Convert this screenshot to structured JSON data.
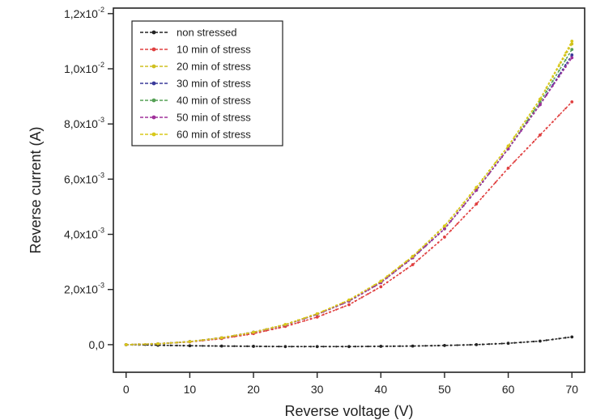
{
  "chart_data": {
    "type": "line",
    "xlabel": "Reverse voltage (V)",
    "ylabel": "Reverse current (A)",
    "xlim": [
      -2,
      72
    ],
    "ylim": [
      -0.001,
      0.0122
    ],
    "x_ticks": [
      0,
      10,
      20,
      30,
      40,
      50,
      60,
      70
    ],
    "x_tick_labels": [
      "0",
      "10",
      "20",
      "30",
      "40",
      "50",
      "60",
      "70"
    ],
    "y_ticks": [
      0,
      0.002,
      0.004,
      0.006,
      0.008,
      0.01,
      0.012
    ],
    "y_tick_labels": [
      {
        "mantissa": "0,0",
        "exp": ""
      },
      {
        "mantissa": "2,0x10",
        "exp": "-3"
      },
      {
        "mantissa": "4,0x10",
        "exp": "-3"
      },
      {
        "mantissa": "6,0x10",
        "exp": "-3"
      },
      {
        "mantissa": "8,0x10",
        "exp": "-3"
      },
      {
        "mantissa": "1,0x10",
        "exp": "-2"
      },
      {
        "mantissa": "1,2x10",
        "exp": "-2"
      }
    ],
    "grid": false,
    "legend_position": "top-left",
    "x": [
      0,
      5,
      10,
      15,
      20,
      25,
      30,
      35,
      40,
      45,
      50,
      55,
      60,
      65,
      70
    ],
    "series": [
      {
        "name": "non stressed",
        "color": "#222222",
        "values": [
          0,
          -2e-05,
          -4e-05,
          -5e-05,
          -6e-05,
          -7e-05,
          -7e-05,
          -7e-05,
          -6e-05,
          -5e-05,
          -3e-05,
          0,
          5e-05,
          0.00013,
          0.00028
        ]
      },
      {
        "name": "10 min of stress",
        "color": "#e04040",
        "values": [
          0,
          3e-05,
          0.0001,
          0.00022,
          0.0004,
          0.00066,
          0.001,
          0.00145,
          0.0021,
          0.0029,
          0.0039,
          0.0051,
          0.0064,
          0.0076,
          0.0088
        ]
      },
      {
        "name": "20 min of stress",
        "color": "#cfc020",
        "values": [
          0,
          3e-05,
          0.00011,
          0.00025,
          0.00045,
          0.00073,
          0.00112,
          0.0016,
          0.0023,
          0.0032,
          0.0043,
          0.0057,
          0.0072,
          0.0089,
          0.0109
        ]
      },
      {
        "name": "30 min of stress",
        "color": "#3a3a9a",
        "values": [
          0,
          3e-05,
          0.00011,
          0.00025,
          0.00045,
          0.00072,
          0.0011,
          0.00158,
          0.00225,
          0.00315,
          0.0042,
          0.0056,
          0.0071,
          0.0087,
          0.0105
        ]
      },
      {
        "name": "40 min of stress",
        "color": "#55a055",
        "values": [
          0,
          3e-05,
          0.00011,
          0.00025,
          0.00045,
          0.00072,
          0.0011,
          0.00158,
          0.00225,
          0.00315,
          0.0042,
          0.0056,
          0.0071,
          0.0088,
          0.0107
        ]
      },
      {
        "name": "50 min of stress",
        "color": "#a0309a",
        "values": [
          0,
          3e-05,
          0.00011,
          0.00025,
          0.00045,
          0.00072,
          0.0011,
          0.00158,
          0.00225,
          0.00315,
          0.0042,
          0.0056,
          0.0071,
          0.0087,
          0.0104
        ]
      },
      {
        "name": "60 min of stress",
        "color": "#d8c81a",
        "values": [
          0,
          3e-05,
          0.00011,
          0.00025,
          0.00045,
          0.00073,
          0.00112,
          0.00162,
          0.0023,
          0.0032,
          0.0043,
          0.0057,
          0.0072,
          0.0089,
          0.011
        ]
      }
    ]
  }
}
